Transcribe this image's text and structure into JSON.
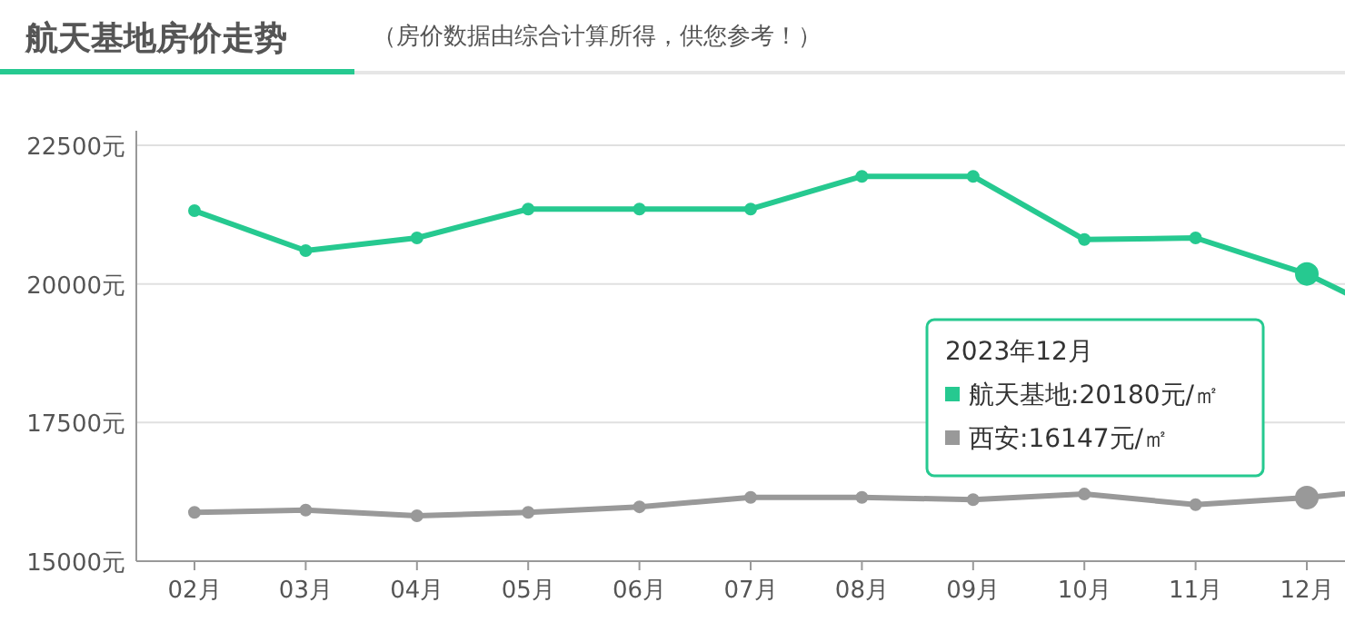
{
  "chart_data": {
    "type": "line",
    "title": "航天基地房价走势",
    "subtitle": "（房价数据由综合计算所得，供您参考！）",
    "categories": [
      "02月",
      "03月",
      "04月",
      "05月",
      "06月",
      "07月",
      "08月",
      "09月",
      "10月",
      "11月",
      "12月",
      null
    ],
    "series": [
      {
        "name": "航天基地",
        "color": "#26c990",
        "values": [
          21320,
          20600,
          20830,
          21350,
          21350,
          21350,
          21940,
          21940,
          20800,
          20830,
          20180,
          19200
        ],
        "value_labels": [
          null,
          null,
          null,
          null,
          null,
          null,
          null,
          null,
          null,
          null,
          ":20180元/㎡",
          null
        ]
      },
      {
        "name": "西安",
        "color": "#999999",
        "values": [
          15880,
          15920,
          15820,
          15880,
          15980,
          16150,
          16150,
          16110,
          16210,
          16020,
          16147,
          16350
        ],
        "value_labels": [
          null,
          null,
          null,
          null,
          null,
          null,
          null,
          null,
          null,
          null,
          ":16147元/㎡",
          null
        ]
      }
    ],
    "annotations": [
      "2023年12月"
    ],
    "ylim": [
      15000,
      22500
    ],
    "yticks": [
      {
        "value": 15000,
        "label": "15000元"
      },
      {
        "value": 17500,
        "label": "17500元"
      },
      {
        "value": 20000,
        "label": "20000元"
      },
      {
        "value": 22500,
        "label": "22500元"
      }
    ],
    "grid": "y",
    "marker": "circle",
    "line_style": "solid"
  }
}
